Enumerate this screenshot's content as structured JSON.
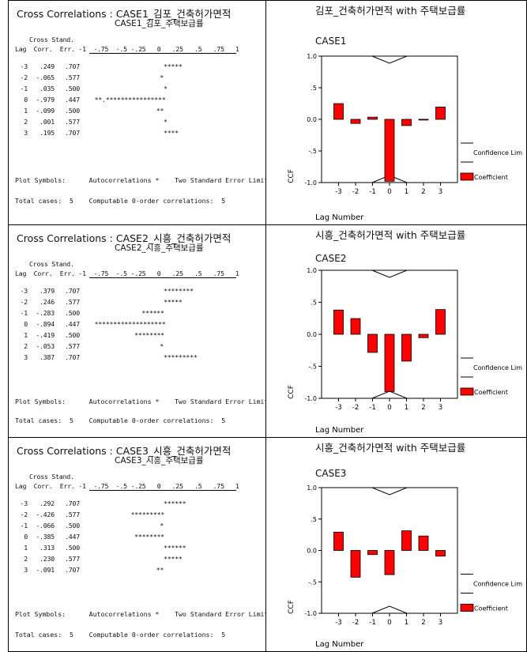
{
  "panels": [
    {
      "cc_title_line1": "Cross Correlations : CASE1_김포_건축허가면적",
      "cc_title_line2": "CASE1_김포_주택보급률",
      "header_line1": "Cross Stand.",
      "header_line2": "Lag  Corr.  Err. -1  -.75  -.5 -.25   0   .25   .5   .75   1",
      "rows": [
        {
          "lag": "-3",
          "corr": ".249",
          "err": ".707",
          "stars": "*****"
        },
        {
          "lag": "-2",
          "corr": "-.065",
          "err": ".577",
          "stars": "*"
        },
        {
          "lag": "-1",
          "corr": ".035",
          "err": ".500",
          "stars": "*"
        },
        {
          "lag": "0",
          "corr": "-.979",
          "err": ".447",
          "stars": "**.****************"
        },
        {
          "lag": "1",
          "corr": "-.099",
          "err": ".500",
          "stars": "**"
        },
        {
          "lag": "2",
          "corr": ".001",
          "err": ".577",
          "stars": "*"
        },
        {
          "lag": "3",
          "corr": ".195",
          "err": ".707",
          "stars": "****"
        }
      ],
      "plot_symbols": "Plot Symbols:      Autocorrelations *    Two Standard Error Limits",
      "total_cases": "Total cases:  5    Computable 0-order correlations:  5",
      "chart_title": "김포_건축허가면적 with 주택보급률",
      "case_label": "CASE1"
    },
    {
      "cc_title_line1": "Cross Correlations : CASE2_시흥_건축허가면적",
      "cc_title_line2": "CASE2_시흥_주택보급률",
      "header_line1": "Cross Stand.",
      "header_line2": "Lag  Corr.  Err. -1  -.75  -.5 -.25   0   .25   .5   .75   1",
      "rows": [
        {
          "lag": "-3",
          "corr": ".379",
          "err": ".707",
          "stars": "********"
        },
        {
          "lag": "-2",
          "corr": ".246",
          "err": ".577",
          "stars": "*****"
        },
        {
          "lag": "-1",
          "corr": "-.283",
          "err": ".500",
          "stars": "******"
        },
        {
          "lag": "0",
          "corr": "-.894",
          "err": ".447",
          "stars": "*******************"
        },
        {
          "lag": "1",
          "corr": "-.419",
          "err": ".500",
          "stars": "********"
        },
        {
          "lag": "2",
          "corr": "-.053",
          "err": ".577",
          "stars": "*"
        },
        {
          "lag": "3",
          "corr": ".387",
          "err": ".707",
          "stars": "*********"
        }
      ],
      "plot_symbols": "Plot Symbols:      Autocorrelations *    Two Standard Error Limits",
      "total_cases": "Total cases:  5    Computable 0-order correlations:  5",
      "chart_title": "시흥_건축허가면적 with 주택보급률",
      "case_label": "CASE2"
    },
    {
      "cc_title_line1": "Cross Correlations : CASE3_시흥_건축허가면적",
      "cc_title_line2": "CASE3_시흥_주택보급률",
      "header_line1": "Cross Stand.",
      "header_line2": "Lag  Corr.  Err. -1  -.75  -.5 -.25   0   .25   .5   .75   1",
      "rows": [
        {
          "lag": "-3",
          "corr": ".292",
          "err": ".707",
          "stars": "******"
        },
        {
          "lag": "-2",
          "corr": "-.426",
          "err": ".577",
          "stars": "*********"
        },
        {
          "lag": "-1",
          "corr": "-.066",
          "err": ".500",
          "stars": "*"
        },
        {
          "lag": "0",
          "corr": "-.385",
          "err": ".447",
          "stars": "********"
        },
        {
          "lag": "1",
          "corr": ".313",
          "err": ".500",
          "stars": "******"
        },
        {
          "lag": "2",
          "corr": ".230",
          "err": ".577",
          "stars": "*****"
        },
        {
          "lag": "3",
          "corr": "-.091",
          "err": ".707",
          "stars": "**"
        }
      ],
      "plot_symbols": "Plot Symbols:      Autocorrelations *    Two Standard Error Limits",
      "total_cases": "Total cases:  5    Computable 0-order correlations:  5",
      "chart_title": "시흥_건축허가면적 with 주택보급률",
      "case_label": "CASE3"
    }
  ],
  "chart_data": [
    {
      "type": "bar",
      "title": "김포_건축허가면적 with 주택보급률",
      "subtitle": "CASE1",
      "xlabel": "Lag Number",
      "ylabel": "CCF",
      "categories": [
        "-3",
        "-2",
        "-1",
        "0",
        "1",
        "2",
        "3"
      ],
      "series": [
        {
          "name": "Coefficient",
          "values": [
            0.249,
            -0.065,
            0.035,
            -0.979,
            -0.099,
            0.001,
            0.195
          ]
        }
      ],
      "confidence_label": "Confidence Lim",
      "ylim": [
        -1.0,
        1.0
      ],
      "yticks": [
        "1.0",
        ".5",
        "0.0",
        "-.5",
        "-1.0"
      ],
      "bar_color": "#ff0000"
    },
    {
      "type": "bar",
      "title": "시흥_건축허가면적 with 주택보급률",
      "subtitle": "CASE2",
      "xlabel": "Lag Number",
      "ylabel": "CCF",
      "categories": [
        "-3",
        "-2",
        "-1",
        "0",
        "1",
        "2",
        "3"
      ],
      "series": [
        {
          "name": "Coefficient",
          "values": [
            0.379,
            0.246,
            -0.283,
            -0.894,
            -0.419,
            -0.053,
            0.387
          ]
        }
      ],
      "confidence_label": "Confidence Lim",
      "ylim": [
        -1.0,
        1.0
      ],
      "yticks": [
        "1.0",
        ".5",
        "0.0",
        "-.5",
        "-1.0"
      ],
      "bar_color": "#ff0000"
    },
    {
      "type": "bar",
      "title": "시흥_건축허가면적 with 주택보급률",
      "subtitle": "CASE3",
      "xlabel": "Lag Number",
      "ylabel": "CCF",
      "categories": [
        "-3",
        "-2",
        "-1",
        "0",
        "1",
        "2",
        "3"
      ],
      "series": [
        {
          "name": "Coefficient",
          "values": [
            0.292,
            -0.426,
            -0.066,
            -0.385,
            0.313,
            0.23,
            -0.091
          ]
        }
      ],
      "confidence_label": "Confidence Lim",
      "ylim": [
        -1.0,
        1.0
      ],
      "yticks": [
        "1.0",
        ".5",
        "0.0",
        "-.5",
        "-1.0"
      ],
      "bar_color": "#ff0000"
    }
  ]
}
